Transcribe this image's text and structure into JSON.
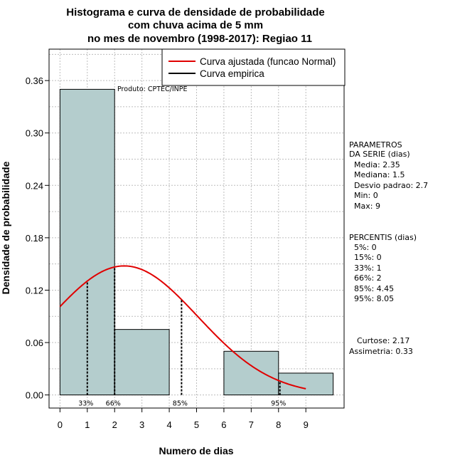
{
  "chart_data": {
    "type": "histogram",
    "title": [
      "Histograma e curva de densidade de probabilidade",
      "com chuva acima de 5 mm",
      "no mes de novembro (1998-2017): Regiao 11"
    ],
    "xlabel": "Numero de dias",
    "ylabel": "Densidade de probabilidade",
    "xlim": [
      -0.4,
      10.4
    ],
    "ylim": [
      -0.015,
      0.396
    ],
    "x_ticks": [
      "0",
      "1",
      "2",
      "3",
      "4",
      "5",
      "6",
      "7",
      "8",
      "9"
    ],
    "y_ticks": [
      "0.00",
      "0.06",
      "0.12",
      "0.18",
      "0.24",
      "0.30",
      "0.36"
    ],
    "bars": [
      {
        "x0": 0,
        "x1": 2,
        "density": 0.35
      },
      {
        "x0": 2,
        "x1": 4,
        "density": 0.075
      },
      {
        "x0": 4,
        "x1": 6,
        "density": 0.0
      },
      {
        "x0": 6,
        "x1": 8,
        "density": 0.05
      },
      {
        "x0": 8,
        "x1": 10,
        "density": 0.025
      }
    ],
    "bar_color": "#b4cdcd",
    "normal_curve": {
      "mean": 2.35,
      "sd": 2.7,
      "x_range": [
        0,
        9
      ],
      "color": "#e00000"
    },
    "percentile_lines": [
      {
        "label": "33%",
        "x": 1
      },
      {
        "label": "66%",
        "x": 2
      },
      {
        "label": "85%",
        "x": 4.45
      },
      {
        "label": "95%",
        "x": 8.05
      }
    ],
    "legend": {
      "position": "top-right",
      "entries": [
        {
          "label": "Curva ajustada (funcao Normal)",
          "color": "#e00000"
        },
        {
          "label": "Curva empirica",
          "color": "#000000"
        }
      ]
    },
    "product_label": "Produto: CPTEC/INPE",
    "parameters_title": [
      "PARAMETROS",
      "DA SERIE (dias)"
    ],
    "parameters": [
      "Media: 2.35",
      "Mediana: 1.5",
      "Desvio padrao: 2.7",
      "Min: 0",
      "Max: 9"
    ],
    "percentiles_title": "PERCENTIS (dias)",
    "percentiles": [
      "5%: 0",
      "15%: 0",
      "33%: 1",
      "66%: 2",
      "85%: 4.45",
      "95%: 8.05"
    ],
    "shape_stats": [
      "Curtose: 2.17",
      "Assimetria: 0.33"
    ]
  }
}
